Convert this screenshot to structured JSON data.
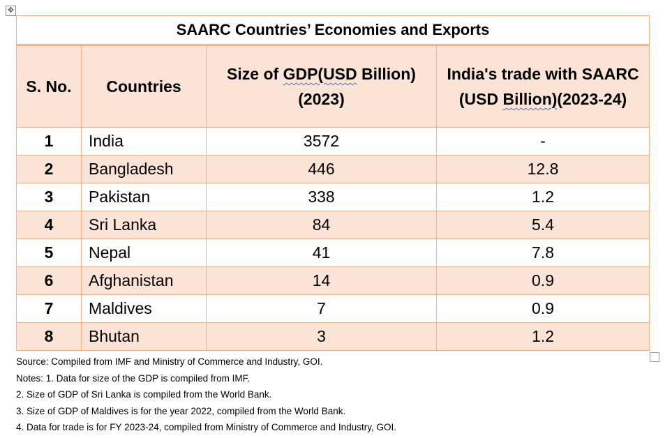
{
  "title": "SAARC Countries’ Economies and Exports",
  "headers": {
    "sno": "S. No.",
    "country": "Countries",
    "gdp_a": "Size of ",
    "gdp_b": "GDP(USD",
    "gdp_c": " Billion)(2023)",
    "trade_a": "India's trade with SAARC (USD ",
    "trade_b": "Billion)",
    "trade_c": "(2023-24)"
  },
  "rows": [
    {
      "sno": "1",
      "country": "India",
      "gdp": "3572",
      "trade": "-"
    },
    {
      "sno": "2",
      "country": "Bangladesh",
      "gdp": "446",
      "trade": "12.8"
    },
    {
      "sno": "3",
      "country": "Pakistan",
      "gdp": "338",
      "trade": "1.2"
    },
    {
      "sno": "4",
      "country": "Sri Lanka",
      "gdp": "84",
      "trade": "5.4"
    },
    {
      "sno": "5",
      "country": "Nepal",
      "gdp": "41",
      "trade": "7.8"
    },
    {
      "sno": "6",
      "country": "Afghanistan",
      "gdp": "14",
      "trade": "0.9"
    },
    {
      "sno": "7",
      "country": "Maldives",
      "gdp": "7",
      "trade": "0.9"
    },
    {
      "sno": "8",
      "country": "Bhutan",
      "gdp": "3",
      "trade": "1.2"
    }
  ],
  "notes": [
    "Source: Compiled from IMF and Ministry of Commerce and Industry, GOI.",
    "Notes: 1. Data for size of the GDP is compiled from IMF.",
    "2. Size of GDP of Sri Lanka is compiled from the World Bank.",
    "3. Size of GDP of Maldives is for the year 2022, compiled from the World Bank.",
    "4. Data for trade is for FY 2023-24, compiled from Ministry of Commerce and Industry, GOI."
  ],
  "colors": {
    "border": "#f4b183",
    "fill": "#fbe4d5"
  }
}
